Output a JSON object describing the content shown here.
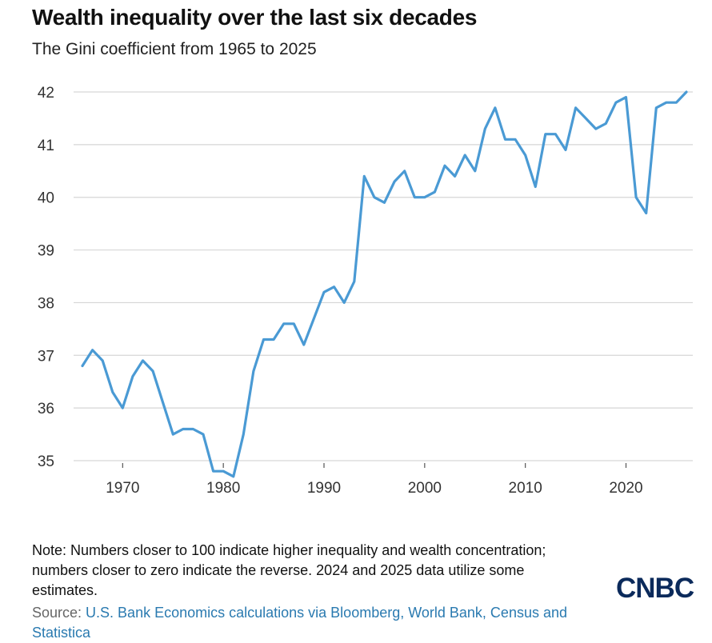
{
  "header": {
    "title": "Wealth inequality over the last six decades",
    "subtitle": "The Gini coefficient from 1965 to 2025"
  },
  "chart_data": {
    "type": "line",
    "title": "Wealth inequality over the last six decades",
    "subtitle": "The Gini coefficient from 1965 to 2025",
    "xlabel": "",
    "ylabel": "",
    "xlim": [
      1966,
      2026
    ],
    "ylim": [
      35,
      42
    ],
    "grid": true,
    "x_ticks": [
      1970,
      1980,
      1990,
      2000,
      2010,
      2020
    ],
    "y_ticks": [
      35,
      36,
      37,
      38,
      39,
      40,
      41,
      42
    ],
    "line_color": "#4a9ad4",
    "series": [
      {
        "name": "Gini coefficient",
        "x": [
          1966,
          1967,
          1968,
          1969,
          1970,
          1971,
          1972,
          1973,
          1974,
          1975,
          1976,
          1977,
          1978,
          1979,
          1980,
          1981,
          1982,
          1983,
          1984,
          1985,
          1986,
          1987,
          1988,
          1989,
          1990,
          1991,
          1992,
          1993,
          1994,
          1995,
          1996,
          1997,
          1998,
          1999,
          2000,
          2001,
          2002,
          2003,
          2004,
          2005,
          2006,
          2007,
          2008,
          2009,
          2010,
          2011,
          2012,
          2013,
          2014,
          2015,
          2016,
          2017,
          2018,
          2019,
          2020,
          2021,
          2022,
          2023,
          2024,
          2025,
          2026
        ],
        "values": [
          36.8,
          37.1,
          36.9,
          36.3,
          36.0,
          36.6,
          36.9,
          36.7,
          36.1,
          35.5,
          35.6,
          35.6,
          35.5,
          34.8,
          34.8,
          34.7,
          35.5,
          36.7,
          37.3,
          37.3,
          37.6,
          37.6,
          37.2,
          37.7,
          38.2,
          38.3,
          38.0,
          38.4,
          40.4,
          40.0,
          39.9,
          40.3,
          40.5,
          40.0,
          40.0,
          40.1,
          40.6,
          40.4,
          40.8,
          40.5,
          41.3,
          41.7,
          41.1,
          41.1,
          40.8,
          40.2,
          41.2,
          41.2,
          40.9,
          41.7,
          41.5,
          41.3,
          41.4,
          41.8,
          41.9,
          40.0,
          39.7,
          41.7,
          41.8,
          41.8,
          42.0
        ]
      }
    ]
  },
  "footer": {
    "note": "Note: Numbers closer to 100 indicate higher inequality and wealth concentration; numbers closer to zero indicate the reverse. 2024 and 2025 data utilize some estimates.",
    "source_label": "Source: ",
    "source_text": "U.S. Bank Economics calculations via Bloomberg, World Bank, Census and Statistica",
    "logo": "CNBC"
  }
}
